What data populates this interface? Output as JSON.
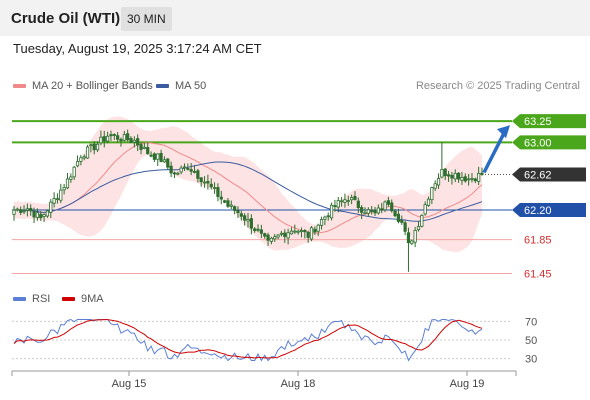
{
  "header": {
    "title": "Crude Oil (WTI)",
    "timeframe": "30 MIN"
  },
  "datetime": "Tuesday, August 19, 2025 3:17:24 AM CET",
  "legend": {
    "ma20": "MA 20 + Bollinger Bands",
    "ma50": "MA 50",
    "credit": "Research © 2025 Trading Central"
  },
  "rsi_legend": {
    "rsi": "RSI",
    "ma": "9MA"
  },
  "colors": {
    "candle": "#2e6e2e",
    "bb_fill": "#fcdcdc",
    "ma20": "#f08a8a",
    "ma50": "#3b5ba0",
    "resistance": "#4aa61a",
    "support": "#f4a4a4",
    "pivot": "#2050a8",
    "current": "#333333",
    "arrow": "#2a6bc4",
    "rsi": "#5b7fd4",
    "rsi_ma": "#d00000"
  },
  "chart_data": {
    "type": "candlestick",
    "y_range": [
      61.35,
      63.5
    ],
    "x_labels": [
      "Aug 15",
      "Aug 18",
      "Aug 19"
    ],
    "levels": [
      {
        "label": "63.25",
        "value": 63.25,
        "kind": "resistance"
      },
      {
        "label": "63.00",
        "value": 63.0,
        "kind": "resistance"
      },
      {
        "label": "62.62",
        "value": 62.62,
        "kind": "current"
      },
      {
        "label": "62.20",
        "value": 62.2,
        "kind": "pivot"
      },
      {
        "label": "61.85",
        "value": 61.85,
        "kind": "support"
      },
      {
        "label": "61.45",
        "value": 61.45,
        "kind": "support"
      }
    ],
    "anchors": [
      [
        0,
        62.2
      ],
      [
        4,
        62.22
      ],
      [
        8,
        62.1
      ],
      [
        12,
        62.32
      ],
      [
        16,
        62.55
      ],
      [
        20,
        62.85
      ],
      [
        24,
        62.95
      ],
      [
        28,
        63.08
      ],
      [
        32,
        63.05
      ],
      [
        36,
        63.02
      ],
      [
        40,
        62.88
      ],
      [
        44,
        62.8
      ],
      [
        48,
        62.62
      ],
      [
        52,
        62.72
      ],
      [
        56,
        62.58
      ],
      [
        60,
        62.42
      ],
      [
        64,
        62.25
      ],
      [
        68,
        62.15
      ],
      [
        72,
        61.98
      ],
      [
        76,
        61.8
      ],
      [
        80,
        61.92
      ],
      [
        84,
        61.98
      ],
      [
        88,
        61.9
      ],
      [
        92,
        62.08
      ],
      [
        96,
        62.25
      ],
      [
        100,
        62.35
      ],
      [
        104,
        62.22
      ],
      [
        108,
        62.15
      ],
      [
        112,
        62.3
      ],
      [
        116,
        62.05
      ],
      [
        118,
        61.78
      ],
      [
        121,
        62.05
      ],
      [
        125,
        62.48
      ],
      [
        128,
        62.65
      ],
      [
        132,
        62.62
      ],
      [
        136,
        62.57
      ],
      [
        140,
        62.62
      ]
    ],
    "forecast": {
      "from": 62.62,
      "to": 63.25
    },
    "rsi": {
      "levels": [
        70,
        50,
        30
      ],
      "range": [
        20,
        80
      ]
    }
  }
}
